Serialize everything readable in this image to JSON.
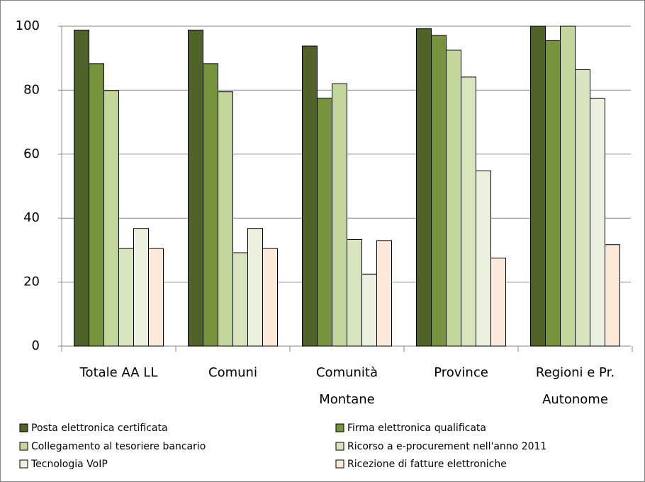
{
  "chart_data": {
    "type": "bar",
    "categories": [
      "Totale AA LL",
      "Comuni",
      "Comunità\nMontane",
      "Province",
      "Regioni e Pr.\nAutonome"
    ],
    "series": [
      {
        "name": "Posta elettronica certificata",
        "color": "#4f6228",
        "values": [
          98.8,
          98.8,
          93.8,
          99.2,
          100
        ]
      },
      {
        "name": "Firma elettronica qualificata",
        "color": "#77933c",
        "values": [
          88.3,
          88.3,
          77.5,
          97.1,
          95.5
        ]
      },
      {
        "name": "Collegamento al tesoriere bancario",
        "color": "#c3d69b",
        "values": [
          79.9,
          79.5,
          82,
          92.5,
          100
        ]
      },
      {
        "name": "Ricorso a e-procurement nell'anno 2011",
        "color": "#d7e4bd",
        "values": [
          30.5,
          29.2,
          33.3,
          84.1,
          86.4
        ]
      },
      {
        "name": "Tecnologia VoIP",
        "color": "#ebf1de",
        "values": [
          36.8,
          36.8,
          22.5,
          54.8,
          77.4
        ]
      },
      {
        "name": "Ricezione di fatture elettroniche",
        "color": "#fde9d9",
        "values": [
          30.5,
          30.5,
          33,
          27.5,
          31.7
        ]
      }
    ],
    "ylim": [
      0,
      100
    ],
    "yticks": [
      0,
      20,
      40,
      60,
      80,
      100
    ],
    "grid": true,
    "legend": "bottom"
  }
}
